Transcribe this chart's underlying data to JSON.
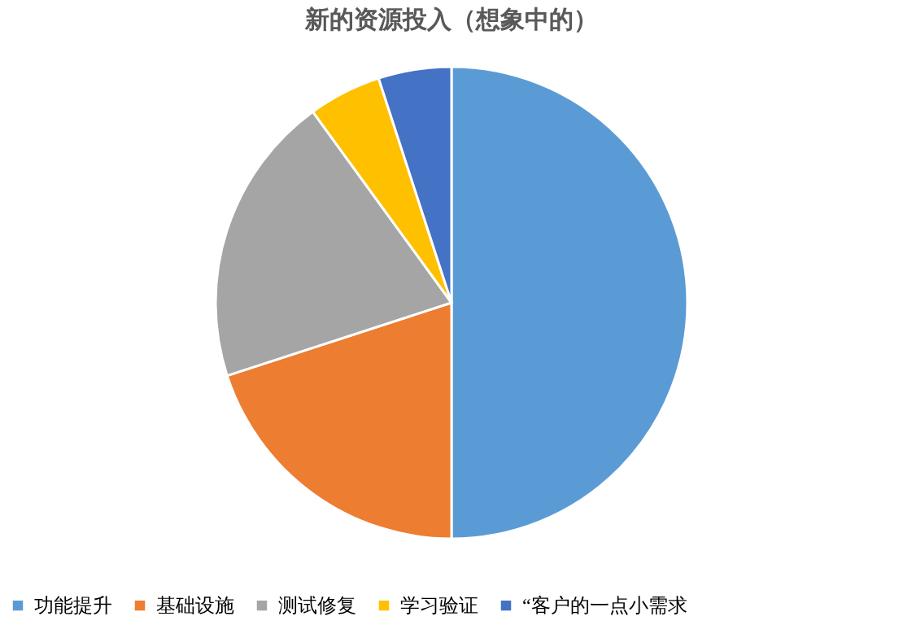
{
  "chart_data": {
    "type": "pie",
    "title": "新的资源投入（想象中的）",
    "categories": [
      "功能提升",
      "基础设施",
      "测试修复",
      "学习验证",
      "“客户的一点小需求"
    ],
    "values": [
      50,
      20,
      20,
      5,
      5
    ],
    "colors": [
      "#5b9bd5",
      "#ed7d31",
      "#a5a5a5",
      "#ffc000",
      "#4472c4"
    ],
    "legend": "bottom"
  }
}
